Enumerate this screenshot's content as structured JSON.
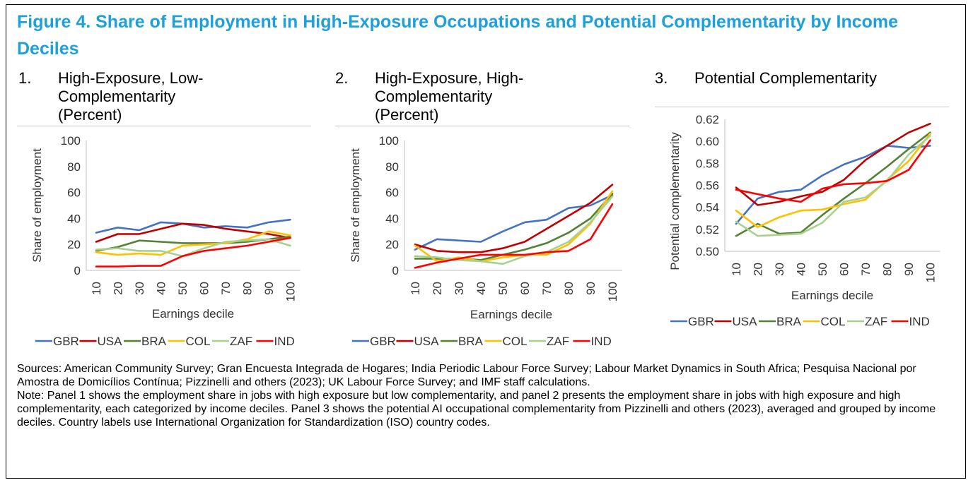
{
  "figure": {
    "title": "Figure 4. Share of Employment in High-Exposure Occupations and Potential Complementarity by Income Deciles",
    "accent_color": "#1ea0dc",
    "sources": "Sources: American Community Survey; Gran Encuesta Integrada de Hogares; India Periodic Labour Force Survey; Labour Market Dynamics in South Africa; Pesquisa Nacional por Amostra de Domicílios Contínua; Pizzinelli and others (2023); UK Labour Force Survey; and IMF staff calculations.",
    "note": "Note: Panel 1 shows the employment share in jobs with high exposure but low complementarity, and panel 2 presents the employment share in jobs with high exposure and high complementarity, each categorized by income deciles. Panel 3 shows the potential AI occupational complementarity from Pizzinelli and others (2023), averaged and grouped by income deciles. Country labels use International Organization for Standardization (ISO) country codes."
  },
  "panels": [
    {
      "number": "1.",
      "title_lines": [
        "High-Exposure, Low-",
        "Complementarity",
        "(Percent)"
      ]
    },
    {
      "number": "2.",
      "title_lines": [
        "High-Exposure, High-",
        "Complementarity",
        "(Percent)"
      ]
    },
    {
      "number": "3.",
      "title_lines": [
        "Potential Complementarity"
      ]
    }
  ],
  "chart_data": [
    {
      "type": "line",
      "xlabel": "Earnings decile",
      "ylabel": "Share of employment",
      "categories": [
        "10",
        "20",
        "30",
        "40",
        "50",
        "60",
        "70",
        "80",
        "90",
        "100"
      ],
      "ylim": [
        0,
        100
      ],
      "yticks": [
        "0",
        "20",
        "40",
        "60",
        "80",
        "100"
      ],
      "grid": false,
      "legend_position": "bottom",
      "series": [
        {
          "name": "GBR",
          "color": "#4472c4",
          "values": [
            29,
            33,
            31,
            37,
            36,
            33,
            34,
            33,
            37,
            39
          ]
        },
        {
          "name": "USA",
          "color": "#c00000",
          "values": [
            22,
            28,
            28,
            32,
            36,
            35,
            32,
            30,
            28,
            25
          ]
        },
        {
          "name": "BRA",
          "color": "#548235",
          "values": [
            15,
            18,
            23,
            22,
            21,
            21,
            21,
            22,
            24,
            26
          ]
        },
        {
          "name": "COL",
          "color": "#ffc000",
          "values": [
            14,
            12,
            13,
            12,
            19,
            20,
            21,
            24,
            30,
            27
          ]
        },
        {
          "name": "ZAF",
          "color": "#a9d18e",
          "values": [
            16,
            17,
            15,
            15,
            11,
            17,
            22,
            23,
            24,
            19
          ]
        },
        {
          "name": "IND",
          "color": "#ff0000",
          "values": [
            3,
            3,
            3.5,
            3.5,
            11,
            15,
            17,
            19,
            22,
            25
          ]
        }
      ]
    },
    {
      "type": "line",
      "xlabel": "Earnings decile",
      "ylabel": "Share of employment",
      "categories": [
        "10",
        "20",
        "30",
        "40",
        "50",
        "60",
        "70",
        "80",
        "90",
        "100"
      ],
      "ylim": [
        0,
        100
      ],
      "yticks": [
        "0",
        "20",
        "40",
        "60",
        "80",
        "100"
      ],
      "grid": false,
      "legend_position": "bottom",
      "series": [
        {
          "name": "GBR",
          "color": "#4472c4",
          "values": [
            16,
            24,
            23,
            22,
            30,
            37,
            39,
            48,
            50,
            58
          ]
        },
        {
          "name": "USA",
          "color": "#c00000",
          "values": [
            20,
            15,
            14,
            14,
            17,
            22,
            32,
            42,
            52,
            66
          ]
        },
        {
          "name": "BRA",
          "color": "#548235",
          "values": [
            9,
            9,
            9,
            8,
            12,
            16,
            21,
            29,
            40,
            59
          ]
        },
        {
          "name": "COL",
          "color": "#ffc000",
          "values": [
            19,
            7,
            10,
            7,
            10,
            12,
            12,
            20,
            36,
            61
          ]
        },
        {
          "name": "ZAF",
          "color": "#a9d18e",
          "values": [
            11,
            10,
            8,
            7,
            5,
            11,
            14,
            22,
            37,
            57
          ]
        },
        {
          "name": "IND",
          "color": "#ff0000",
          "values": [
            2,
            6,
            9,
            12,
            12,
            12,
            14,
            15,
            24,
            51
          ]
        }
      ]
    },
    {
      "type": "line",
      "xlabel": "Earnings decile",
      "ylabel": "Potential complementarity",
      "categories": [
        "10",
        "20",
        "30",
        "40",
        "50",
        "60",
        "70",
        "80",
        "90",
        "100"
      ],
      "ylim": [
        0.5,
        0.62
      ],
      "yticks": [
        "0.50",
        "0.52",
        "0.54",
        "0.56",
        "0.58",
        "0.60",
        "0.62"
      ],
      "grid": false,
      "legend_position": "bottom",
      "series": [
        {
          "name": "GBR",
          "color": "#4472c4",
          "values": [
            0.525,
            0.548,
            0.554,
            0.556,
            0.569,
            0.579,
            0.586,
            0.596,
            0.594,
            0.596
          ]
        },
        {
          "name": "USA",
          "color": "#c00000",
          "values": [
            0.558,
            0.542,
            0.545,
            0.55,
            0.554,
            0.565,
            0.583,
            0.596,
            0.608,
            0.616
          ]
        },
        {
          "name": "BRA",
          "color": "#548235",
          "values": [
            0.514,
            0.525,
            0.516,
            0.517,
            0.533,
            0.548,
            0.562,
            0.577,
            0.593,
            0.608
          ]
        },
        {
          "name": "COL",
          "color": "#ffc000",
          "values": [
            0.537,
            0.522,
            0.531,
            0.537,
            0.538,
            0.543,
            0.547,
            0.565,
            0.582,
            0.607
          ]
        },
        {
          "name": "ZAF",
          "color": "#a9d18e",
          "values": [
            0.527,
            0.514,
            0.515,
            0.516,
            0.526,
            0.545,
            0.549,
            0.564,
            0.588,
            0.605
          ]
        },
        {
          "name": "IND",
          "color": "#ff0000",
          "values": [
            0.556,
            0.552,
            0.548,
            0.545,
            0.557,
            0.561,
            0.562,
            0.564,
            0.574,
            0.601
          ]
        }
      ]
    }
  ]
}
